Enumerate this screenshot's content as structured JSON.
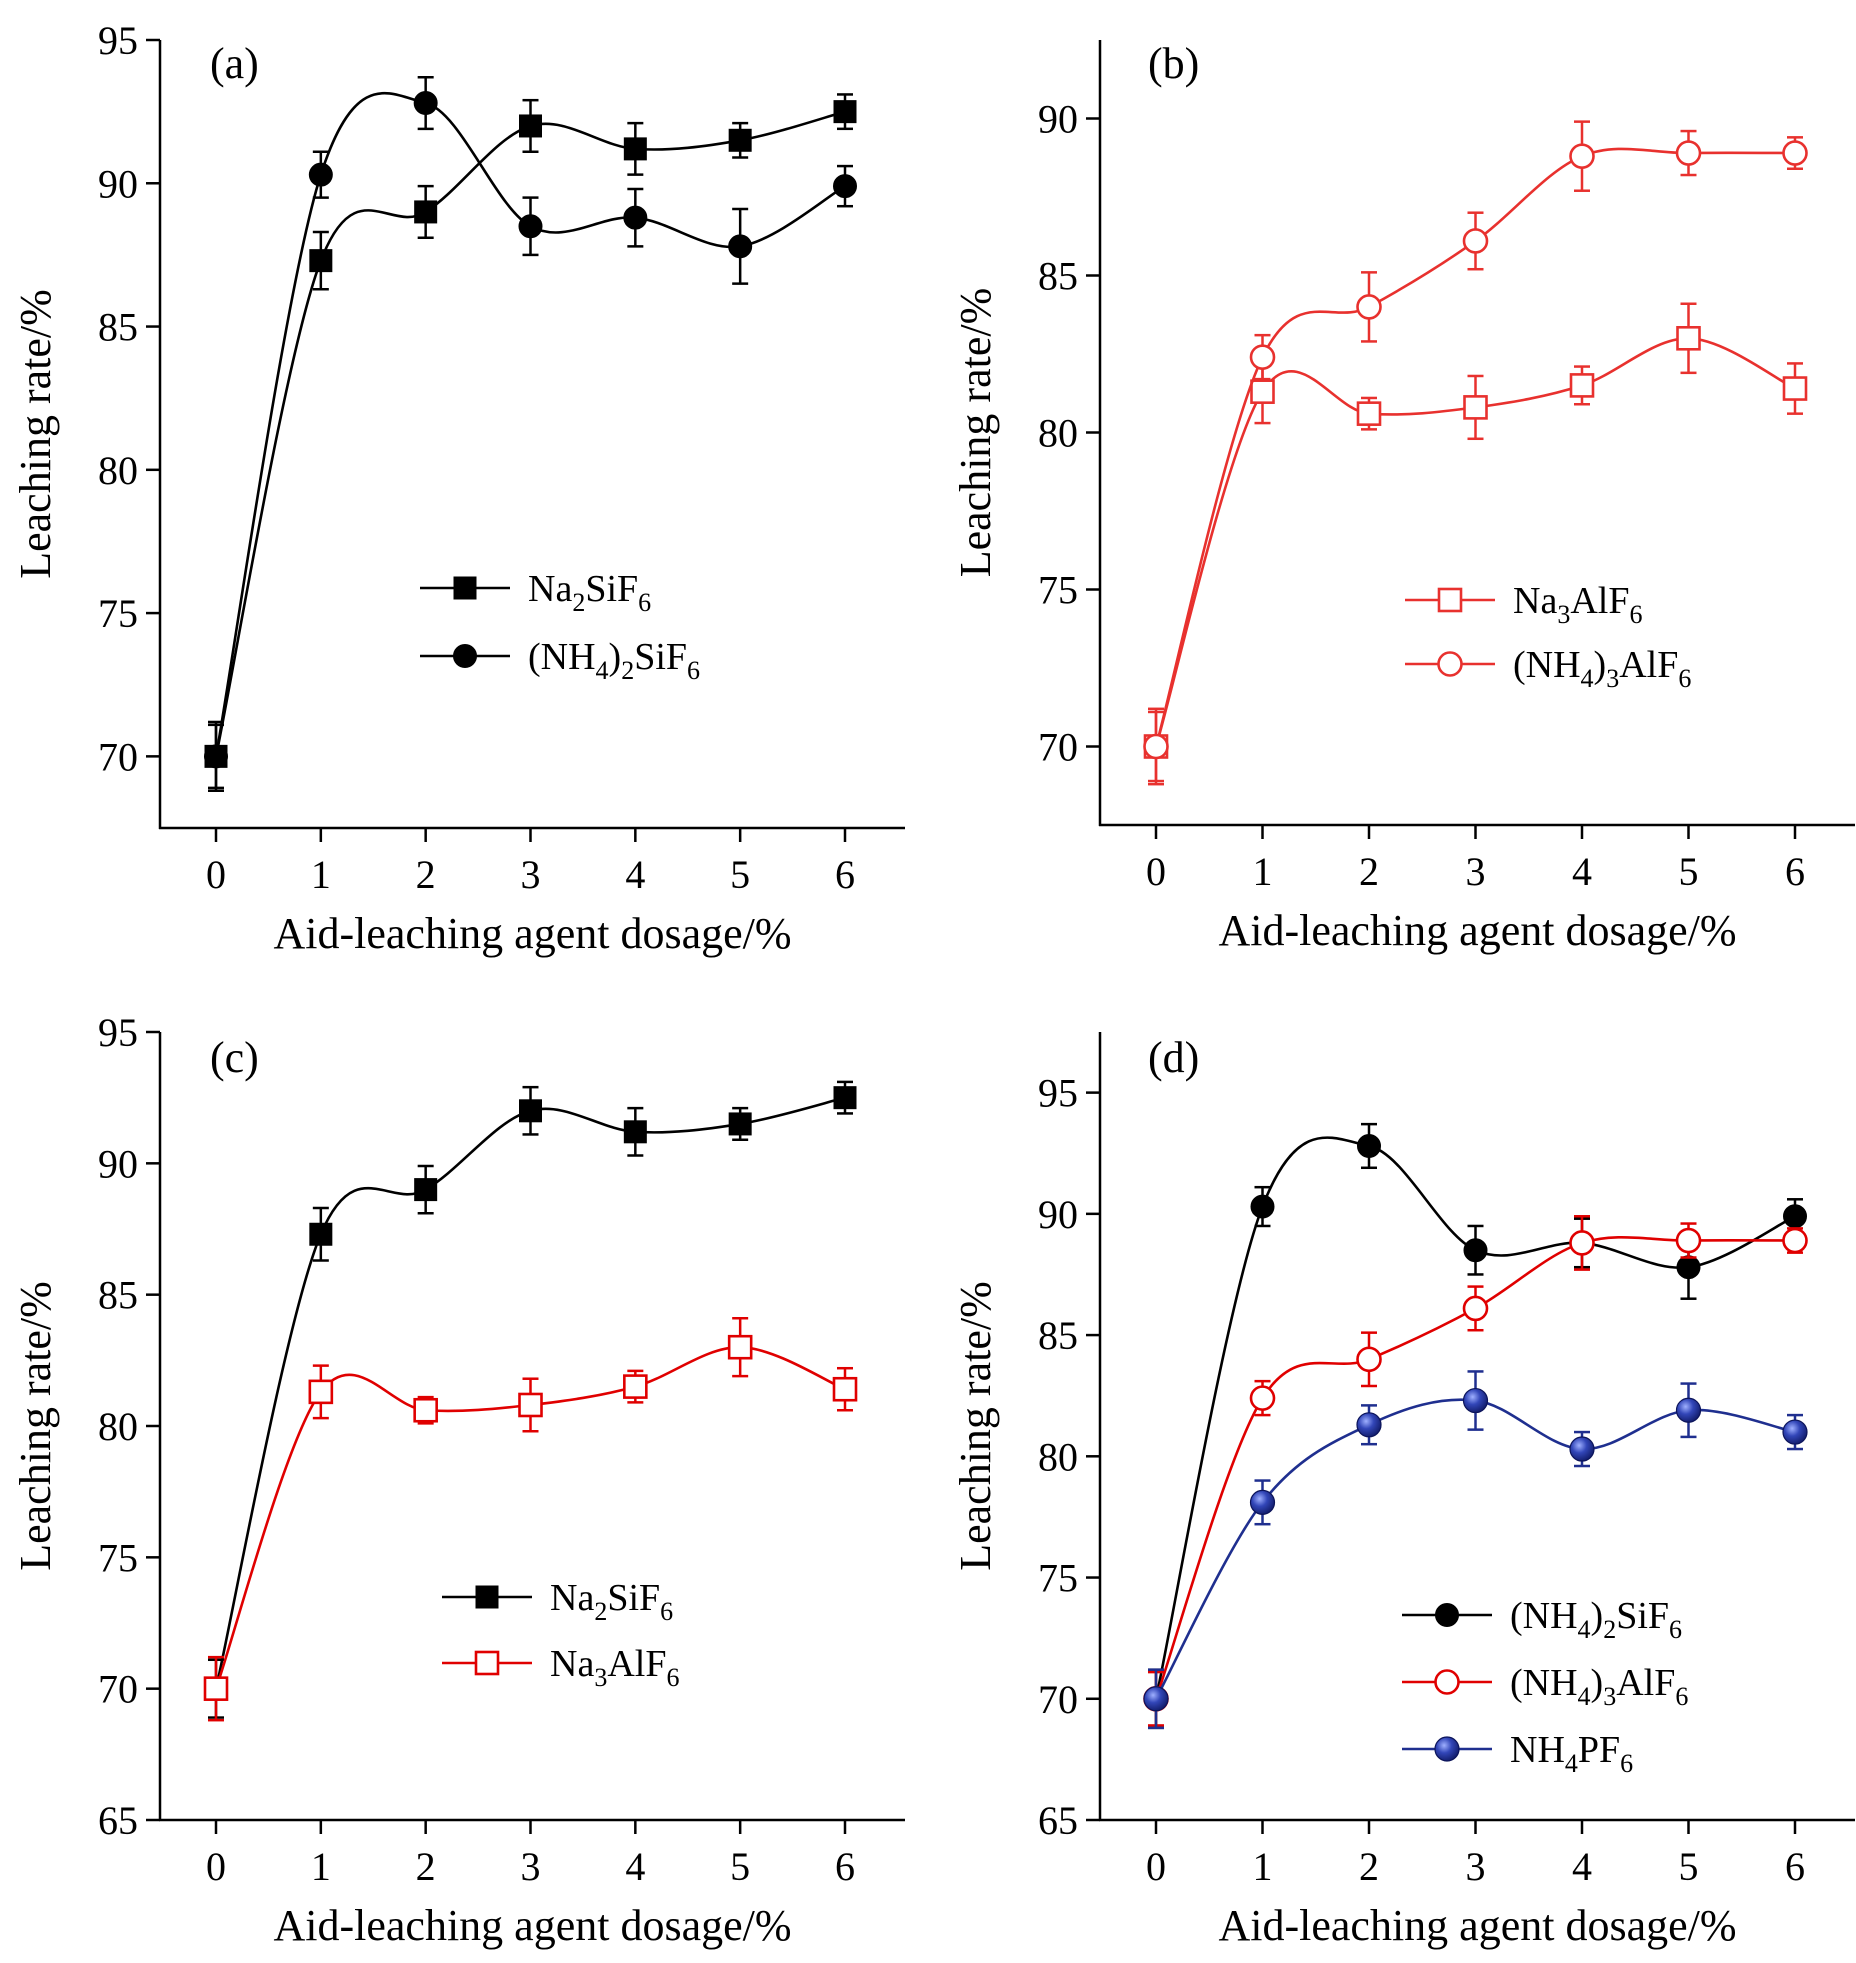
{
  "chart_data": [
    {
      "panel": "(a)",
      "type": "line",
      "xlabel": "Aid-leaching agent dosage/%",
      "ylabel": "Leaching rate/%",
      "x": [
        0,
        1,
        2,
        3,
        4,
        5,
        6
      ],
      "xticks": [
        "0",
        "1",
        "2",
        "3",
        "4",
        "5",
        "6"
      ],
      "ylim": [
        67.5,
        95
      ],
      "yticks": [
        "70",
        "75",
        "80",
        "85",
        "90",
        "95"
      ],
      "legend_position": "center-right",
      "series": [
        {
          "name": "Na2SiF6",
          "legend": [
            "Na",
            "2",
            "SiF",
            "6"
          ],
          "values": [
            70.0,
            87.3,
            89.0,
            92.0,
            91.2,
            91.5,
            92.5
          ],
          "errors": [
            1.1,
            1.0,
            0.9,
            0.9,
            0.9,
            0.6,
            0.6
          ],
          "marker": "square",
          "filled": true,
          "color": "#000000"
        },
        {
          "name": "(NH4)2SiF6",
          "legend": [
            "(NH",
            "4",
            ")",
            "2",
            "SiF",
            "6"
          ],
          "values": [
            70.0,
            90.3,
            92.8,
            88.5,
            88.8,
            87.8,
            89.9
          ],
          "errors": [
            1.2,
            0.8,
            0.9,
            1.0,
            1.0,
            1.3,
            0.7
          ],
          "marker": "circle",
          "filled": true,
          "color": "#000000"
        }
      ]
    },
    {
      "panel": "(b)",
      "type": "line",
      "xlabel": "Aid-leaching agent dosage/%",
      "ylabel": "Leaching rate/%",
      "x": [
        0,
        1,
        2,
        3,
        4,
        5,
        6
      ],
      "xticks": [
        "0",
        "1",
        "2",
        "3",
        "4",
        "5",
        "6"
      ],
      "ylim": [
        67.5,
        92.5
      ],
      "yticks": [
        "70",
        "75",
        "80",
        "85",
        "90"
      ],
      "legend_position": "lower-right",
      "series": [
        {
          "name": "Na3AlF6",
          "legend": [
            "Na",
            "3",
            "AlF",
            "6"
          ],
          "values": [
            70.0,
            81.3,
            80.6,
            80.8,
            81.5,
            83.0,
            81.4
          ],
          "errors": [
            1.2,
            1.0,
            0.5,
            1.0,
            0.6,
            1.1,
            0.8
          ],
          "marker": "square",
          "filled": false,
          "color": "#e8312e"
        },
        {
          "name": "(NH4)3AlF6",
          "legend": [
            "(NH",
            "4",
            ")",
            "3",
            "AlF",
            "6"
          ],
          "values": [
            70.0,
            82.4,
            84.0,
            86.1,
            88.8,
            88.9,
            88.9
          ],
          "errors": [
            1.1,
            0.7,
            1.1,
            0.9,
            1.1,
            0.7,
            0.5
          ],
          "marker": "circle",
          "filled": false,
          "color": "#e8312e"
        }
      ]
    },
    {
      "panel": "(c)",
      "type": "line",
      "xlabel": "Aid-leaching agent dosage/%",
      "ylabel": "Leaching rate/%",
      "x": [
        0,
        1,
        2,
        3,
        4,
        5,
        6
      ],
      "xticks": [
        "0",
        "1",
        "2",
        "3",
        "4",
        "5",
        "6"
      ],
      "ylim": [
        65,
        95
      ],
      "yticks": [
        "65",
        "70",
        "75",
        "80",
        "85",
        "90",
        "95"
      ],
      "legend_position": "lower-right",
      "series": [
        {
          "name": "Na2SiF6",
          "legend": [
            "Na",
            "2",
            "SiF",
            "6"
          ],
          "values": [
            70.0,
            87.3,
            89.0,
            92.0,
            91.2,
            91.5,
            92.5
          ],
          "errors": [
            1.1,
            1.0,
            0.9,
            0.9,
            0.9,
            0.6,
            0.6
          ],
          "marker": "square",
          "filled": true,
          "color": "#000000"
        },
        {
          "name": "Na3AlF6",
          "legend": [
            "Na",
            "3",
            "AlF",
            "6"
          ],
          "values": [
            70.0,
            81.3,
            80.6,
            80.8,
            81.5,
            83.0,
            81.4
          ],
          "errors": [
            1.2,
            1.0,
            0.5,
            1.0,
            0.6,
            1.1,
            0.8
          ],
          "marker": "square",
          "filled": false,
          "color": "#e00000"
        }
      ]
    },
    {
      "panel": "(d)",
      "type": "line",
      "xlabel": "Aid-leaching agent dosage/%",
      "ylabel": "Leaching rate/%",
      "x": [
        0,
        1,
        2,
        3,
        4,
        5,
        6
      ],
      "xticks": [
        "0",
        "1",
        "2",
        "3",
        "4",
        "5",
        "6"
      ],
      "ylim": [
        65,
        97.5
      ],
      "yticks": [
        "65",
        "70",
        "75",
        "80",
        "85",
        "90",
        "95"
      ],
      "legend_position": "lower-right",
      "series": [
        {
          "name": "(NH4)2SiF6",
          "legend": [
            "(NH",
            "4",
            ")",
            "2",
            "SiF",
            "6"
          ],
          "values": [
            70.0,
            90.3,
            92.8,
            88.5,
            88.8,
            87.8,
            89.9
          ],
          "errors": [
            1.2,
            0.8,
            0.9,
            1.0,
            1.0,
            1.3,
            0.7
          ],
          "marker": "circle",
          "filled": true,
          "color": "#000000"
        },
        {
          "name": "(NH4)3AlF6",
          "legend": [
            "(NH",
            "4",
            ")",
            "3",
            "AlF",
            "6"
          ],
          "values": [
            70.0,
            82.4,
            84.0,
            86.1,
            88.8,
            88.9,
            88.9
          ],
          "errors": [
            1.1,
            0.7,
            1.1,
            0.9,
            1.1,
            0.7,
            0.5
          ],
          "marker": "circle",
          "filled": false,
          "color": "#e00000"
        },
        {
          "name": "NH4PF6",
          "legend": [
            "NH",
            "4",
            "PF",
            "6"
          ],
          "values": [
            70.0,
            78.1,
            81.3,
            82.3,
            80.3,
            81.9,
            81.0
          ],
          "errors": [
            1.2,
            0.9,
            0.8,
            1.2,
            0.7,
            1.1,
            0.7
          ],
          "marker": "ball",
          "filled": true,
          "color": "#1f2f8f"
        }
      ]
    }
  ]
}
